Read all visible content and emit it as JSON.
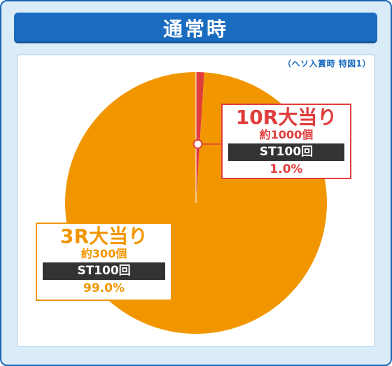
{
  "header": {
    "title": "通常時"
  },
  "note": "（ヘソ入賞時 特図1）",
  "colors": {
    "orange": "#f29600",
    "red": "#e03c3c",
    "blue": "#1a6cc0"
  },
  "chart_data": {
    "type": "pie",
    "title": "通常時",
    "slices": [
      {
        "label": "10R大当り",
        "sub": "約1000個",
        "st": "ST100回",
        "percent": 1.0,
        "pct_text": "1.0%",
        "color": "#e03c3c"
      },
      {
        "label": "3R大当り",
        "sub": "約300個",
        "st": "ST100回",
        "percent": 99.0,
        "pct_text": "99.0%",
        "color": "#f29600"
      }
    ]
  }
}
